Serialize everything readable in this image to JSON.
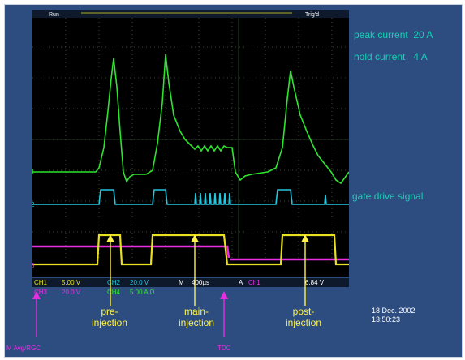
{
  "scope": {
    "status_top": "Run",
    "trig_text": "Trig'd",
    "ch_marker_1": "1",
    "ch_marker_2": "2",
    "ch_marker_3": "3",
    "readouts": [
      {
        "label": "CH1",
        "value": "5.00 V"
      },
      {
        "label": "CH2",
        "value": "20.0 V"
      },
      {
        "label": "M",
        "value": "400µs"
      },
      {
        "label": "A",
        "value": "Ch1"
      },
      {
        "label": "slope",
        "value": "6.84 V"
      }
    ],
    "readouts_row2": [
      {
        "label": "CH3",
        "value": "20.0 V"
      },
      {
        "label": "CH4",
        "value": "5.00 A Ω"
      }
    ]
  },
  "labels": {
    "peak_current": "peak current",
    "peak_current_value": "20 A",
    "hold_current": "hold current",
    "hold_current_value": "4 A",
    "gate_drive": "gate drive signal",
    "pre_injection": "pre-\ninjection",
    "main_injection": "main-\ninjection",
    "post_injection": "post-\ninjection",
    "date": "18 Dec. 2002",
    "time": "13:50:23",
    "bottom_left": "M Avg/RGC",
    "bottom_middle": "TDC"
  },
  "colors": {
    "panel": "#2d4d80",
    "screen": "#000000",
    "grid": "#3a4a3a",
    "current_trace": "#2ee52e",
    "gate_trace": "#22c7e0",
    "injector_trace": "#e8e020",
    "magenta_trace": "#e82ee0",
    "accent_text": "#16d1b4",
    "annotation_yellow": "#fff34a"
  }
}
